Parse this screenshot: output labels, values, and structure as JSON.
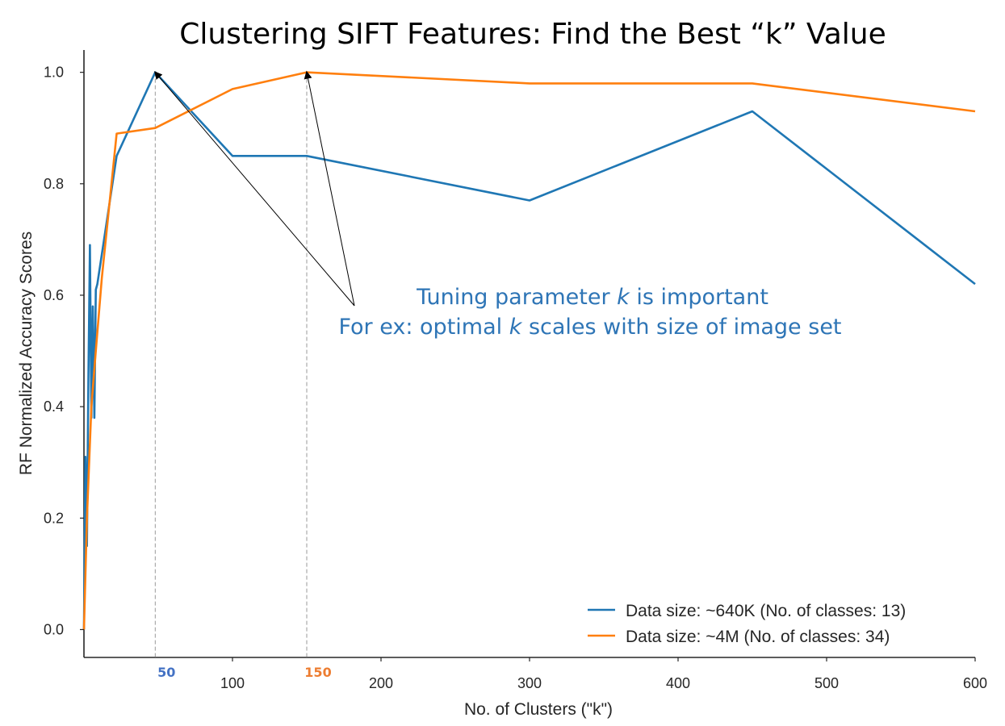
{
  "chart_data": {
    "type": "line",
    "title": "Clustering SIFT Features: Find the Best “k” Value",
    "xlabel": "No. of Clusters (\"k\")",
    "ylabel": "RF Normalized Accuracy Scores",
    "xlim": [
      0,
      600
    ],
    "ylim": [
      -0.05,
      1.04
    ],
    "xticks": [
      100,
      200,
      300,
      400,
      500,
      600
    ],
    "yticks": [
      0.0,
      0.2,
      0.4,
      0.6,
      0.8,
      1.0
    ],
    "xtick_labels": [
      "100",
      "200",
      "300",
      "400",
      "500",
      "600"
    ],
    "ytick_labels": [
      "0.0",
      "0.2",
      "0.4",
      "0.6",
      "0.8",
      "1.0"
    ],
    "grid": false,
    "legend_position": "bottom-right",
    "series": [
      {
        "name": "Data size: ~640K (No. of classes: 13)",
        "color": "#1f77b4",
        "x": [
          0,
          1,
          2,
          3,
          4,
          5,
          6,
          7,
          8,
          9,
          22,
          48,
          100,
          150,
          300,
          450,
          600
        ],
        "y": [
          0.0,
          0.31,
          0.15,
          0.45,
          0.69,
          0.38,
          0.58,
          0.38,
          0.61,
          0.62,
          0.85,
          1.0,
          0.85,
          0.85,
          0.77,
          0.93,
          0.62
        ]
      },
      {
        "name": "Data size: ~4M (No. of classes: 34)",
        "color": "#ff7f0e",
        "x": [
          0,
          2,
          5,
          8,
          12,
          22,
          48,
          100,
          150,
          300,
          450,
          600
        ],
        "y": [
          0.0,
          0.2,
          0.4,
          0.5,
          0.63,
          0.89,
          0.9,
          0.97,
          1.0,
          0.98,
          0.98,
          0.93
        ]
      }
    ],
    "reference_lines": [
      {
        "x": 48,
        "label": "50",
        "color": "#4472c4"
      },
      {
        "x": 150,
        "label": "150",
        "color": "#ed7d31"
      }
    ],
    "annotations": {
      "line1_prefix": "Tuning parameter ",
      "line1_italic": "k",
      "line1_suffix": " is important",
      "line2_prefix": "For ex: optimal ",
      "line2_italic": "k",
      "line2_suffix": " scales with size of image set",
      "color": "#2e75b6",
      "arrows_point_to_x": [
        48,
        150
      ],
      "arrows_point_to_y": [
        1.0,
        1.0
      ]
    }
  }
}
